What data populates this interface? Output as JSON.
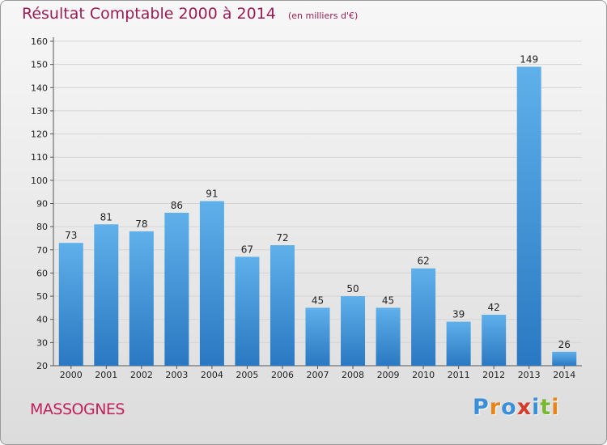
{
  "title": "Résultat Comptable 2000 à 2014",
  "subtitle": "(en milliers d'€)",
  "commune": "MASSOGNES",
  "logo": {
    "letters": [
      "P",
      "r",
      "o",
      "x",
      "i",
      "t",
      "i"
    ],
    "colors": [
      "#3a8fd8",
      "#e8851a",
      "#3a8fd8",
      "#d63a2a",
      "#3a8fd8",
      "#7ab833",
      "#e8851a"
    ]
  },
  "colors": {
    "bar_top": "#5fb0ea",
    "bar_bottom": "#2a78c2",
    "title": "#9b1b55"
  },
  "chart_data": {
    "type": "bar",
    "categories": [
      "2000",
      "2001",
      "2002",
      "2003",
      "2004",
      "2005",
      "2006",
      "2007",
      "2008",
      "2009",
      "2010",
      "2011",
      "2012",
      "2013",
      "2014"
    ],
    "values": [
      73,
      81,
      78,
      86,
      91,
      67,
      72,
      45,
      50,
      45,
      62,
      39,
      42,
      149,
      26
    ],
    "ylim": [
      20,
      160
    ],
    "yticks": [
      20,
      30,
      40,
      50,
      60,
      70,
      80,
      90,
      100,
      110,
      120,
      130,
      140,
      150,
      160
    ],
    "grid": true,
    "legend": "none"
  }
}
